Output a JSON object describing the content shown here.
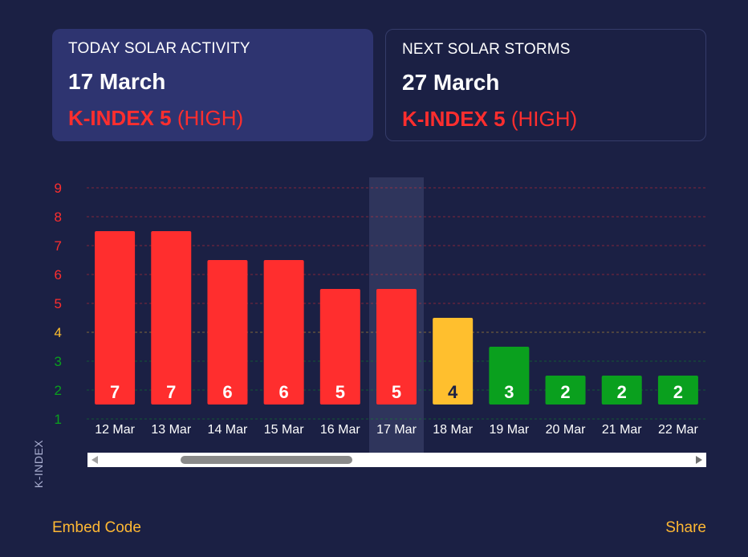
{
  "today": {
    "label": "TODAY SOLAR ACTIVITY",
    "date": "17 March",
    "kindex": "K-INDEX 5",
    "level": "(HIGH)"
  },
  "next": {
    "label": "NEXT SOLAR STORMS",
    "date": "27 March",
    "kindex": "K-INDEX 5",
    "level": "(HIGH)"
  },
  "chart_data": {
    "type": "bar",
    "ylabel": "K-INDEX",
    "categories": [
      "12 Mar",
      "13 Mar",
      "14 Mar",
      "15 Mar",
      "16 Mar",
      "17 Mar",
      "18 Mar",
      "19 Mar",
      "20 Mar",
      "21 Mar",
      "22 Mar"
    ],
    "values": [
      7,
      7,
      6,
      6,
      5,
      5,
      4,
      3,
      2,
      2,
      2
    ],
    "highlighted_category": "17 Mar",
    "yticks": [
      1,
      2,
      3,
      4,
      5,
      6,
      7,
      8,
      9
    ],
    "ylim": [
      0.5,
      9.3
    ],
    "grid": "dashed horizontal",
    "colors": {
      "high": "#ff2e2e",
      "moderate": "#ffbf2e",
      "low": "#0aa01e"
    },
    "thresholds": {
      "low_max": 3,
      "moderate": 4,
      "high_min": 5
    }
  },
  "scrollbar": {
    "visible": true
  },
  "footer": {
    "embed_label": "Embed Code",
    "share_label": "Share"
  },
  "colors": {
    "background": "#1b2044",
    "card_today": "#2e3470",
    "accent_link": "#ffb833",
    "kindex_text": "#ff2e2e"
  }
}
